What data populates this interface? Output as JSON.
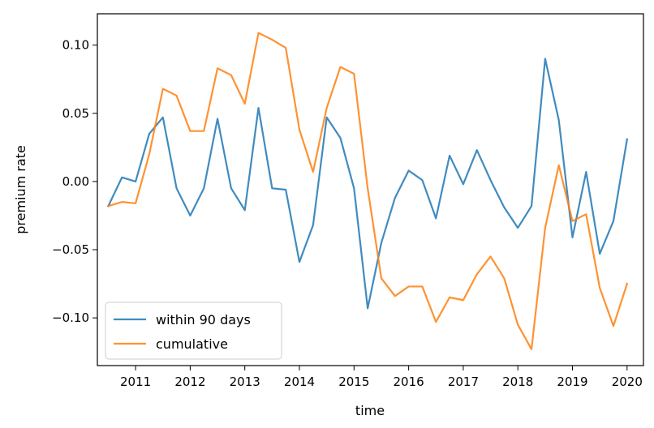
{
  "chart_data": {
    "type": "line",
    "xlabel": "time",
    "ylabel": "premium rate",
    "xlim": [
      2010.3,
      2020.3
    ],
    "ylim": [
      -0.135,
      0.123
    ],
    "x_ticks": [
      2011,
      2012,
      2013,
      2014,
      2015,
      2016,
      2017,
      2018,
      2019,
      2020
    ],
    "x_tick_labels": [
      "2011",
      "2012",
      "2013",
      "2014",
      "2015",
      "2016",
      "2017",
      "2018",
      "2019",
      "2020"
    ],
    "y_ticks": [
      -0.1,
      -0.05,
      0.0,
      0.05,
      0.1
    ],
    "y_tick_labels": [
      "−0.10",
      "−0.05",
      "0.00",
      "0.05",
      "0.10"
    ],
    "grid": false,
    "legend_position": "lower-left",
    "series": [
      {
        "name": "within 90 days",
        "color": "#1f77b4",
        "x": [
          2010.5,
          2010.75,
          2011.0,
          2011.25,
          2011.5,
          2011.75,
          2012.0,
          2012.25,
          2012.5,
          2012.75,
          2013.0,
          2013.25,
          2013.5,
          2013.75,
          2014.0,
          2014.25,
          2014.5,
          2014.75,
          2015.0,
          2015.25,
          2015.5,
          2015.75,
          2016.0,
          2016.25,
          2016.5,
          2016.75,
          2017.0,
          2017.25,
          2017.5,
          2017.75,
          2018.0,
          2018.25,
          2018.5,
          2018.75,
          2019.0,
          2019.25,
          2019.5,
          2019.75,
          2020.0
        ],
        "values": [
          -0.018,
          0.003,
          0.0,
          0.035,
          0.047,
          -0.005,
          -0.025,
          -0.005,
          0.046,
          -0.005,
          -0.021,
          0.054,
          -0.005,
          -0.006,
          -0.059,
          -0.032,
          0.047,
          0.032,
          -0.005,
          -0.093,
          -0.045,
          -0.012,
          0.008,
          0.001,
          -0.027,
          0.019,
          -0.002,
          0.023,
          0.001,
          -0.019,
          -0.034,
          -0.018,
          0.09,
          0.045,
          -0.041,
          0.007,
          -0.053,
          -0.029,
          0.031
        ]
      },
      {
        "name": "cumulative",
        "color": "#ff7f0e",
        "x": [
          2010.5,
          2010.75,
          2011.0,
          2011.25,
          2011.5,
          2011.75,
          2012.0,
          2012.25,
          2012.5,
          2012.75,
          2013.0,
          2013.25,
          2013.5,
          2013.75,
          2014.0,
          2014.25,
          2014.5,
          2014.75,
          2015.0,
          2015.25,
          2015.5,
          2015.75,
          2016.0,
          2016.25,
          2016.5,
          2016.75,
          2017.0,
          2017.25,
          2017.5,
          2017.75,
          2018.0,
          2018.25,
          2018.5,
          2018.75,
          2019.0,
          2019.25,
          2019.5,
          2019.75,
          2020.0
        ],
        "values": [
          -0.018,
          -0.015,
          -0.016,
          0.02,
          0.068,
          0.063,
          0.037,
          0.037,
          0.083,
          0.078,
          0.057,
          0.109,
          0.104,
          0.098,
          0.038,
          0.007,
          0.054,
          0.084,
          0.079,
          -0.005,
          -0.071,
          -0.084,
          -0.077,
          -0.077,
          -0.103,
          -0.085,
          -0.087,
          -0.068,
          -0.055,
          -0.071,
          -0.105,
          -0.123,
          -0.034,
          0.012,
          -0.029,
          -0.024,
          -0.078,
          -0.106,
          -0.075
        ]
      }
    ]
  }
}
